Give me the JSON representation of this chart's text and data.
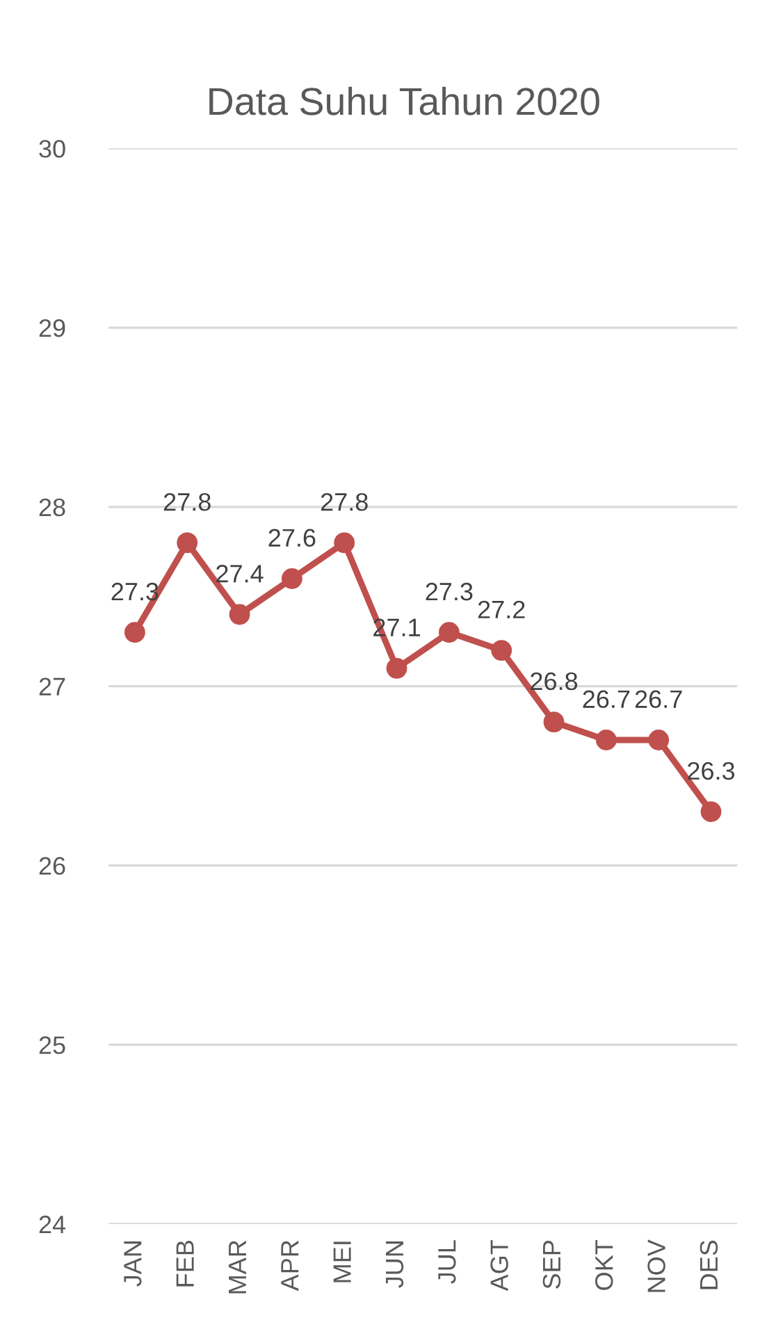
{
  "chart_data": {
    "type": "line",
    "title": "Data Suhu Tahun 2020",
    "categories": [
      "JAN",
      "FEB",
      "MAR",
      "APR",
      "MEI",
      "JUN",
      "JUL",
      "AGT",
      "SEP",
      "OKT",
      "NOV",
      "DES"
    ],
    "values": [
      27.3,
      27.8,
      27.4,
      27.6,
      27.8,
      27.1,
      27.3,
      27.2,
      26.8,
      26.7,
      26.7,
      26.3
    ],
    "color": "#c0504d",
    "ylim": [
      24,
      30
    ],
    "yticks": [
      24,
      25,
      26,
      27,
      28,
      29,
      30
    ],
    "grid": "y",
    "marker": "circle",
    "line_style": "solid",
    "data_labels": true,
    "legend": false
  }
}
